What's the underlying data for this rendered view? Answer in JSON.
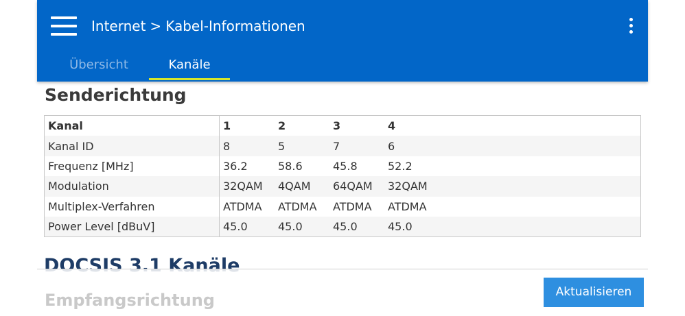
{
  "header": {
    "breadcrumb_parent": "Internet",
    "breadcrumb_separator": ">",
    "breadcrumb_current": "Kabel-Informationen",
    "menu_icon": "hamburger-menu-icon",
    "more_icon": "more-vertical-icon",
    "background_color": "#0266c8"
  },
  "tabs": [
    {
      "label": "Übersicht",
      "active": false
    },
    {
      "label": "Kanäle",
      "active": true
    }
  ],
  "upstream": {
    "title": "Senderichtung",
    "header": [
      "Kanal",
      "1",
      "2",
      "3",
      "4"
    ],
    "rows": [
      {
        "label": "Kanal ID",
        "values": [
          "8",
          "5",
          "7",
          "6"
        ]
      },
      {
        "label": "Frequenz [MHz]",
        "values": [
          "36.2",
          "58.6",
          "45.8",
          "52.2"
        ]
      },
      {
        "label": "Modulation",
        "values": [
          "32QAM",
          "4QAM",
          "64QAM",
          "32QAM"
        ]
      },
      {
        "label": "Multiplex-Verfahren",
        "values": [
          "ATDMA",
          "ATDMA",
          "ATDMA",
          "ATDMA"
        ]
      },
      {
        "label": "Power Level [dBuV]",
        "values": [
          "45.0",
          "45.0",
          "45.0",
          "45.0"
        ]
      }
    ]
  },
  "docsis31": {
    "title": "DOCSIS 3.1 Kanäle",
    "subtitle": "Empfangsrichtung"
  },
  "actions": {
    "refresh_label": "Aktualisieren",
    "refresh_color": "#2e8fe0"
  }
}
